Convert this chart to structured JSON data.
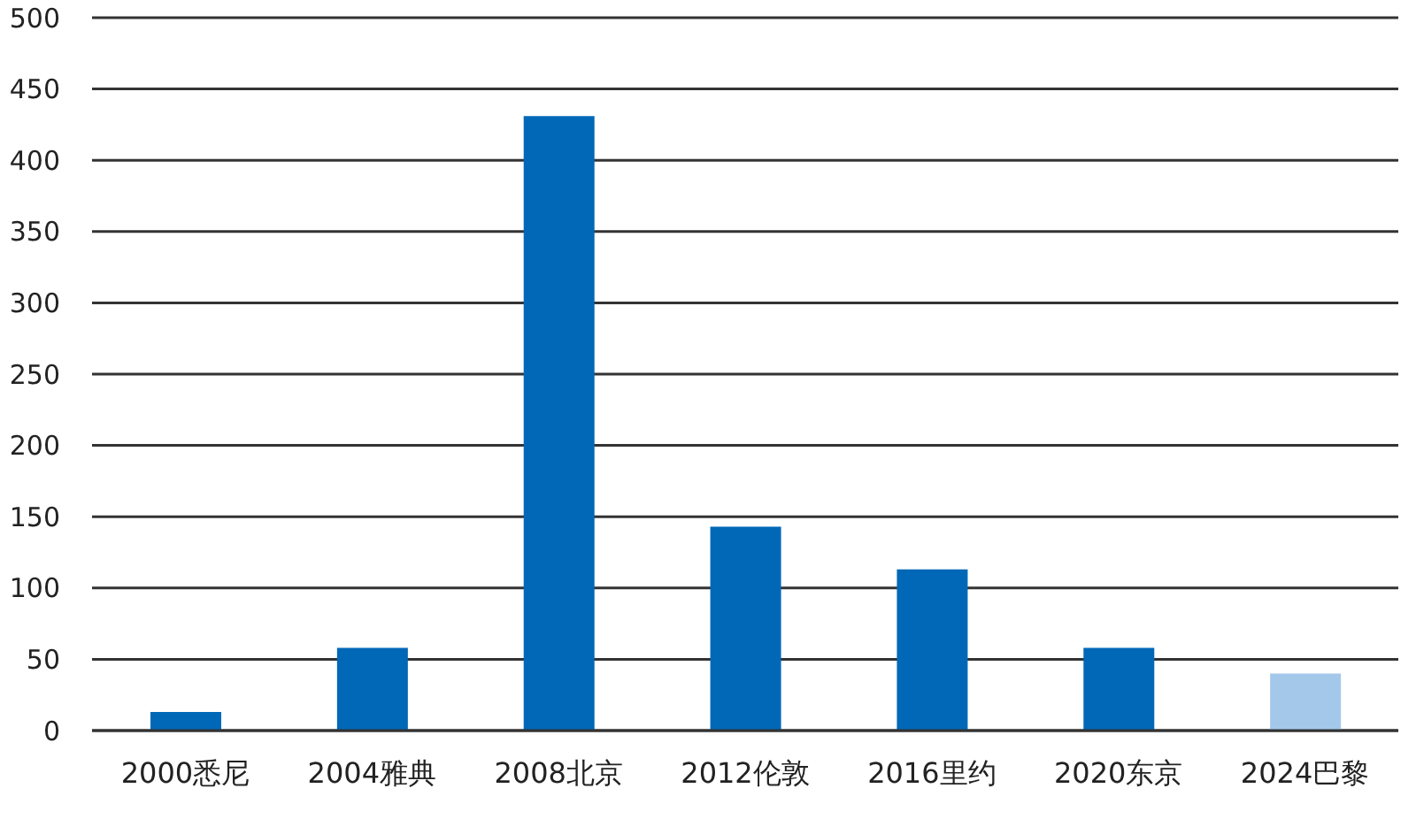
{
  "chart_data": {
    "type": "bar",
    "categories": [
      "2000悉尼",
      "2004雅典",
      "2008北京",
      "2012伦敦",
      "2016里约",
      "2020东京",
      "2024巴黎"
    ],
    "values": [
      13,
      58,
      431,
      143,
      113,
      58,
      40
    ],
    "colors": [
      "#0068b7",
      "#0068b7",
      "#0068b7",
      "#0068b7",
      "#0068b7",
      "#0068b7",
      "#a3c8ea"
    ],
    "ylim": [
      0,
      500
    ],
    "yticks": [
      0,
      50,
      100,
      150,
      200,
      250,
      300,
      350,
      400,
      450,
      500
    ],
    "grid": "y"
  }
}
